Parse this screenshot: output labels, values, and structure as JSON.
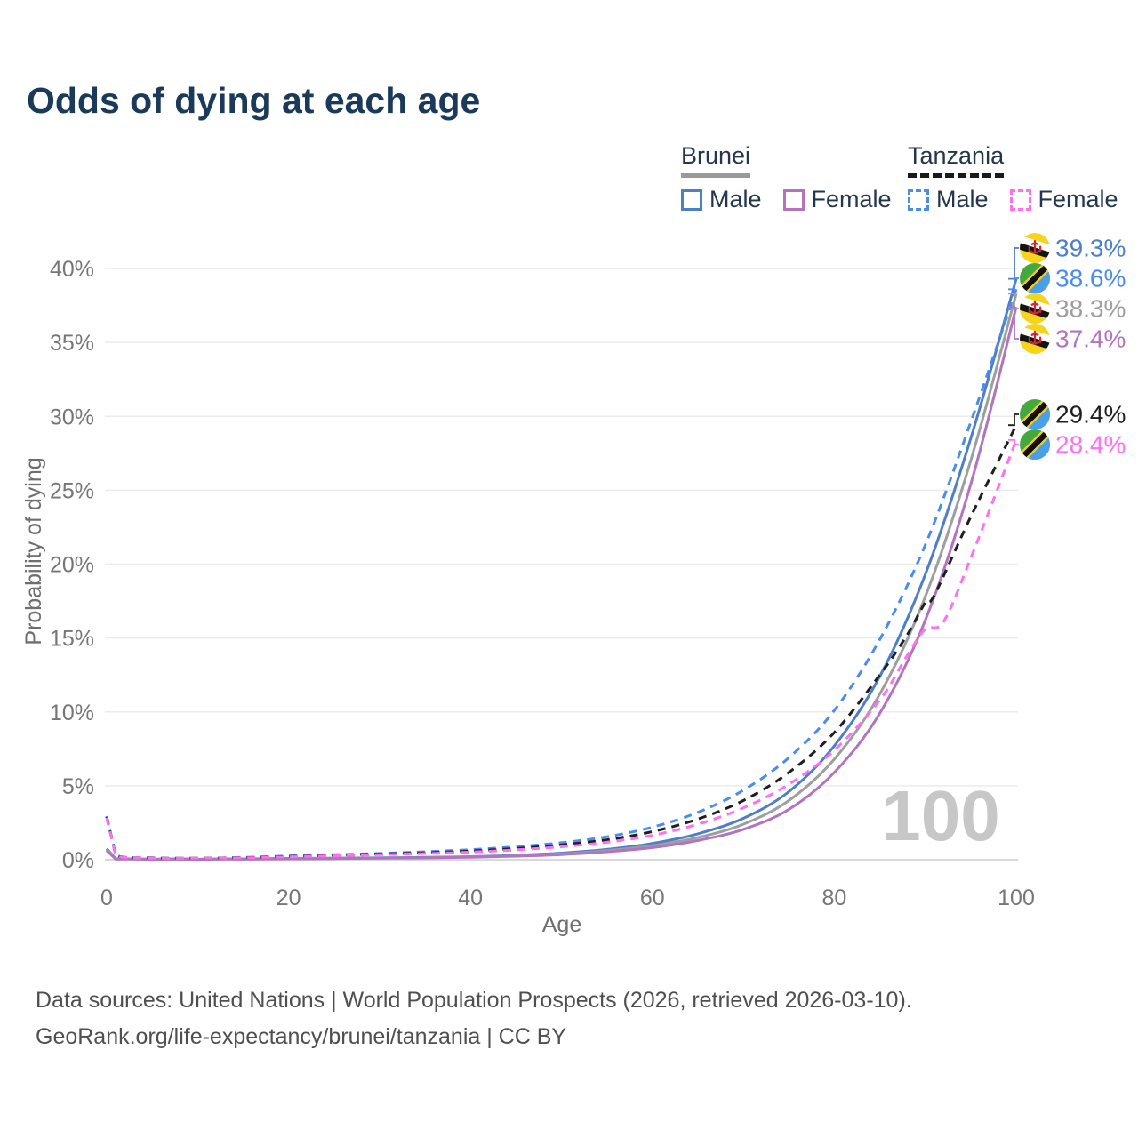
{
  "title": "Odds of dying at each age",
  "legend": {
    "groups": [
      {
        "country": "Brunei",
        "line_style": "solid",
        "line_color": "#9a9a9a",
        "items": [
          {
            "label": "Male",
            "color": "#4d7ec8",
            "dashed": false
          },
          {
            "label": "Female",
            "color": "#b273c0",
            "dashed": false
          }
        ]
      },
      {
        "country": "Tanzania",
        "line_style": "dashed",
        "line_color": "#1a1a1a",
        "items": [
          {
            "label": "Male",
            "color": "#4a8cee",
            "dashed": true
          },
          {
            "label": "Female",
            "color": "#ff6ff0",
            "dashed": true
          }
        ]
      }
    ]
  },
  "watermark_age": "100",
  "footer": {
    "line1": "Data sources: United Nations | World Population Prospects (2026, retrieved 2026-03-10).",
    "line2": "GeoRank.org/life-expectancy/brunei/tanzania | CC BY"
  },
  "chart_data": {
    "type": "line",
    "title": "Odds of dying at each age",
    "xlabel": "Age",
    "ylabel": "Probability of dying",
    "xlim": [
      0,
      100
    ],
    "ylim": [
      0,
      40
    ],
    "grid": true,
    "legend_position": "top-right",
    "x_ticks": [
      [
        0,
        "0"
      ],
      [
        20,
        "20"
      ],
      [
        40,
        "40"
      ],
      [
        60,
        "60"
      ],
      [
        80,
        "80"
      ],
      [
        100,
        "100"
      ]
    ],
    "y_ticks": [
      [
        0,
        "0%"
      ],
      [
        5,
        "5%"
      ],
      [
        10,
        "10%"
      ],
      [
        15,
        "15%"
      ],
      [
        20,
        "20%"
      ],
      [
        25,
        "25%"
      ],
      [
        30,
        "30%"
      ],
      [
        35,
        "35%"
      ],
      [
        40,
        "40%"
      ]
    ],
    "series": [
      {
        "name": "Brunei Male",
        "color": "#4d7ec8",
        "dashed": false,
        "flag": "brunei",
        "end_value": 39.3,
        "end_label": "39.3%",
        "points": [
          [
            0,
            0.75
          ],
          [
            1,
            0.06
          ],
          [
            5,
            0.03
          ],
          [
            10,
            0.03
          ],
          [
            15,
            0.06
          ],
          [
            20,
            0.09
          ],
          [
            25,
            0.11
          ],
          [
            30,
            0.13
          ],
          [
            35,
            0.16
          ],
          [
            40,
            0.21
          ],
          [
            45,
            0.3
          ],
          [
            50,
            0.45
          ],
          [
            55,
            0.7
          ],
          [
            60,
            1.1
          ],
          [
            65,
            1.75
          ],
          [
            70,
            2.8
          ],
          [
            75,
            4.6
          ],
          [
            80,
            7.7
          ],
          [
            85,
            12.4
          ],
          [
            90,
            19.3
          ],
          [
            95,
            28.5
          ],
          [
            100,
            39.3
          ]
        ]
      },
      {
        "name": "Tanzania Male",
        "color": "#4a8cee",
        "dashed": true,
        "flag": "tanzania",
        "end_value": 38.6,
        "end_label": "38.6%",
        "points": [
          [
            0,
            2.95
          ],
          [
            1,
            0.32
          ],
          [
            5,
            0.13
          ],
          [
            10,
            0.11
          ],
          [
            15,
            0.16
          ],
          [
            20,
            0.26
          ],
          [
            25,
            0.34
          ],
          [
            30,
            0.43
          ],
          [
            35,
            0.54
          ],
          [
            40,
            0.68
          ],
          [
            45,
            0.88
          ],
          [
            50,
            1.15
          ],
          [
            55,
            1.55
          ],
          [
            60,
            2.2
          ],
          [
            65,
            3.2
          ],
          [
            70,
            4.7
          ],
          [
            75,
            6.9
          ],
          [
            80,
            10.1
          ],
          [
            85,
            14.9
          ],
          [
            90,
            21.3
          ],
          [
            95,
            29.6
          ],
          [
            100,
            38.6
          ]
        ]
      },
      {
        "name": "Brunei Both sexes",
        "color": "#9e9e9e",
        "dashed": false,
        "flag": "brunei",
        "end_value": 38.3,
        "end_label": "38.3%",
        "points": [
          [
            0,
            0.7
          ],
          [
            1,
            0.055
          ],
          [
            5,
            0.027
          ],
          [
            10,
            0.027
          ],
          [
            15,
            0.05
          ],
          [
            20,
            0.08
          ],
          [
            25,
            0.1
          ],
          [
            30,
            0.12
          ],
          [
            35,
            0.14
          ],
          [
            40,
            0.19
          ],
          [
            45,
            0.27
          ],
          [
            50,
            0.4
          ],
          [
            55,
            0.62
          ],
          [
            60,
            0.95
          ],
          [
            65,
            1.5
          ],
          [
            70,
            2.4
          ],
          [
            75,
            4.0
          ],
          [
            80,
            6.8
          ],
          [
            85,
            11.2
          ],
          [
            90,
            17.8
          ],
          [
            95,
            27.0
          ],
          [
            100,
            38.3
          ]
        ]
      },
      {
        "name": "Brunei Female",
        "color": "#b273c0",
        "dashed": false,
        "flag": "brunei",
        "end_value": 37.4,
        "end_label": "37.4%",
        "points": [
          [
            0,
            0.62
          ],
          [
            1,
            0.05
          ],
          [
            5,
            0.025
          ],
          [
            10,
            0.025
          ],
          [
            15,
            0.04
          ],
          [
            20,
            0.06
          ],
          [
            25,
            0.08
          ],
          [
            30,
            0.1
          ],
          [
            35,
            0.12
          ],
          [
            40,
            0.17
          ],
          [
            45,
            0.24
          ],
          [
            50,
            0.35
          ],
          [
            55,
            0.54
          ],
          [
            60,
            0.82
          ],
          [
            65,
            1.3
          ],
          [
            70,
            2.05
          ],
          [
            75,
            3.4
          ],
          [
            80,
            5.9
          ],
          [
            85,
            9.9
          ],
          [
            90,
            16.2
          ],
          [
            95,
            25.4
          ],
          [
            100,
            37.4
          ]
        ]
      },
      {
        "name": "Tanzania Both sexes",
        "color": "#1f1f1f",
        "dashed": true,
        "flag": "tanzania",
        "end_value": 29.4,
        "end_label": "29.4%",
        "points": [
          [
            0,
            2.9
          ],
          [
            1,
            0.3
          ],
          [
            5,
            0.12
          ],
          [
            10,
            0.1
          ],
          [
            15,
            0.14
          ],
          [
            20,
            0.22
          ],
          [
            25,
            0.3
          ],
          [
            30,
            0.38
          ],
          [
            35,
            0.47
          ],
          [
            40,
            0.59
          ],
          [
            45,
            0.76
          ],
          [
            50,
            1.0
          ],
          [
            55,
            1.35
          ],
          [
            60,
            1.9
          ],
          [
            65,
            2.75
          ],
          [
            70,
            4.0
          ],
          [
            75,
            5.9
          ],
          [
            80,
            8.6
          ],
          [
            85,
            12.5
          ],
          [
            88,
            15.2
          ],
          [
            90,
            17.4
          ],
          [
            91,
            17.9
          ],
          [
            95,
            23.2
          ],
          [
            100,
            29.4
          ]
        ]
      },
      {
        "name": "Tanzania Female",
        "color": "#ff6ff0",
        "dashed": true,
        "flag": "tanzania",
        "end_value": 28.4,
        "end_label": "28.4%",
        "points": [
          [
            0,
            2.85
          ],
          [
            1,
            0.29
          ],
          [
            5,
            0.11
          ],
          [
            10,
            0.1
          ],
          [
            15,
            0.13
          ],
          [
            20,
            0.2
          ],
          [
            25,
            0.27
          ],
          [
            30,
            0.34
          ],
          [
            35,
            0.42
          ],
          [
            40,
            0.52
          ],
          [
            45,
            0.67
          ],
          [
            50,
            0.88
          ],
          [
            55,
            1.18
          ],
          [
            60,
            1.65
          ],
          [
            65,
            2.4
          ],
          [
            70,
            3.5
          ],
          [
            75,
            5.1
          ],
          [
            80,
            7.4
          ],
          [
            85,
            10.8
          ],
          [
            88,
            13.8
          ],
          [
            90,
            15.6
          ],
          [
            92,
            16.1
          ],
          [
            95,
            20.4
          ],
          [
            100,
            28.4
          ]
        ]
      }
    ]
  }
}
